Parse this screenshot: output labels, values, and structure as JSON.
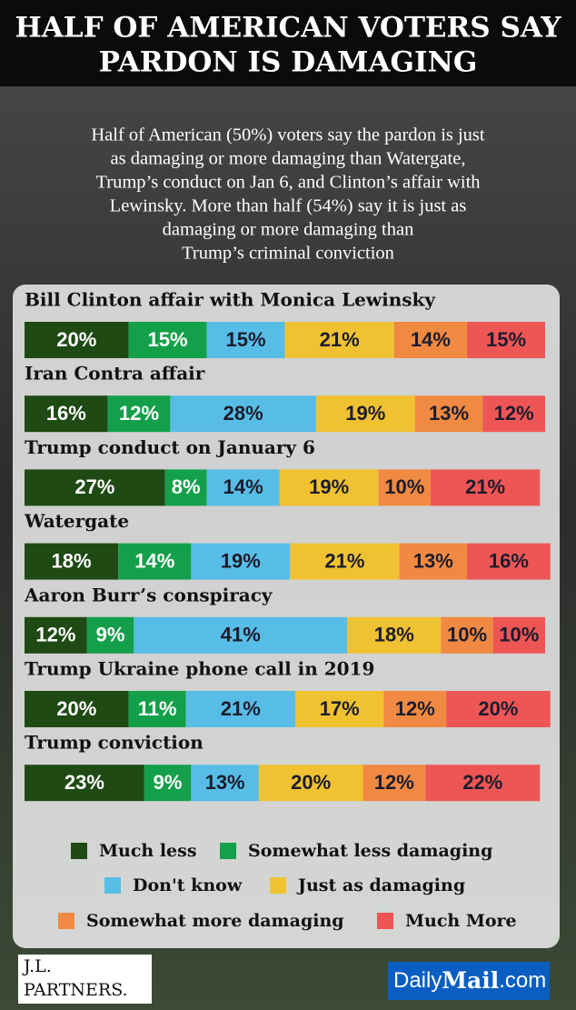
{
  "chart_data": {
    "type": "stacked_bar_horizontal",
    "title": [
      "HALF OF AMERICAN VOTERS SAY",
      "PARDON IS DAMAGING"
    ],
    "subtitle": [
      "Half of American (50%) voters say the pardon is just",
      "as damaging or more damaging than Watergate,",
      "Trump’s conduct on Jan 6, and Clinton’s affair with",
      "Lewinsky.  More than half (54%) say it is just as",
      "damaging or more damaging than",
      "Trump’s criminal conviction"
    ],
    "categories": [
      "Bill Clinton affair with Monica Lewinsky",
      "Iran Contra affair",
      "Trump conduct on January 6",
      "Watergate",
      "Aaron Burr’s conspiracy",
      "Trump Ukraine phone call in 2019",
      "Trump conviction"
    ],
    "series": [
      {
        "name": "Much less",
        "color": "#1f4a14",
        "values": [
          20,
          16,
          27,
          18,
          12,
          20,
          23
        ],
        "value_labels": [
          "20%",
          "16%",
          "27%",
          "18%",
          "12%",
          "20%",
          "23%"
        ]
      },
      {
        "name": "Somewhat less damaging",
        "color": "#14a04a",
        "values": [
          15,
          12,
          8,
          14,
          9,
          11,
          9
        ],
        "value_labels": [
          "15%",
          "12%",
          "8%",
          "14%",
          "9%",
          "11%",
          "9%"
        ]
      },
      {
        "name": "Don't know",
        "color": "#57bde6",
        "values": [
          15,
          28,
          14,
          19,
          41,
          21,
          13
        ],
        "value_labels": [
          "15%",
          "28%",
          "14%",
          "19%",
          "41%",
          "21%",
          "13%"
        ]
      },
      {
        "name": "Just as damaging",
        "color": "#f0c232",
        "values": [
          21,
          19,
          19,
          21,
          18,
          17,
          20
        ],
        "value_labels": [
          "21%",
          "19%",
          "19%",
          "21%",
          "18%",
          "17%",
          "20%"
        ]
      },
      {
        "name": "Somewhat more damaging",
        "color": "#f08a42",
        "values": [
          14,
          13,
          10,
          13,
          10,
          12,
          12
        ],
        "value_labels": [
          "14%",
          "13%",
          "10%",
          "13%",
          "10%",
          "12%",
          "12%"
        ]
      },
      {
        "name": "Much More",
        "color": "#ee5656",
        "values": [
          15,
          12,
          21,
          16,
          10,
          20,
          22
        ],
        "value_labels": [
          "15%",
          "12%",
          "21%",
          "16%",
          "10%",
          "20%",
          "22%"
        ]
      }
    ]
  },
  "logos": {
    "pollster": [
      "J.L.",
      "PARTNERS."
    ],
    "publisher": [
      "Daily",
      "Mail",
      ".com"
    ]
  }
}
